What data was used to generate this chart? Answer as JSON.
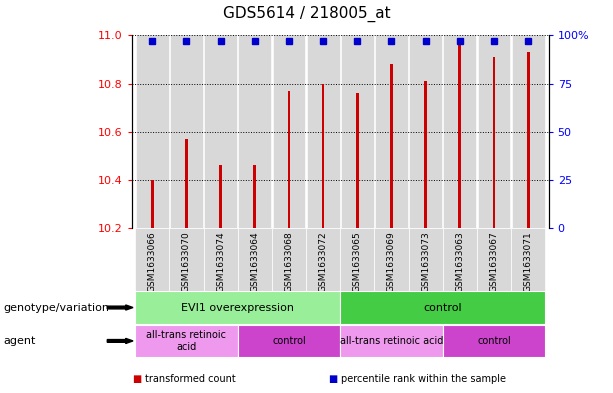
{
  "title": "GDS5614 / 218005_at",
  "samples": [
    "GSM1633066",
    "GSM1633070",
    "GSM1633074",
    "GSM1633064",
    "GSM1633068",
    "GSM1633072",
    "GSM1633065",
    "GSM1633069",
    "GSM1633073",
    "GSM1633063",
    "GSM1633067",
    "GSM1633071"
  ],
  "red_values": [
    10.4,
    10.57,
    10.46,
    10.46,
    10.77,
    10.8,
    10.76,
    10.88,
    10.81,
    10.96,
    10.91,
    10.93
  ],
  "blue_values": [
    97,
    97,
    97,
    97,
    97,
    97,
    97,
    97,
    97,
    97,
    97,
    97
  ],
  "ylim_left": [
    10.2,
    11.0
  ],
  "ylim_right": [
    0,
    100
  ],
  "yticks_left": [
    10.2,
    10.4,
    10.6,
    10.8,
    11.0
  ],
  "yticks_right": [
    0,
    25,
    50,
    75,
    100
  ],
  "ytick_labels_right": [
    "0",
    "25",
    "50",
    "75",
    "100%"
  ],
  "bar_color": "#cc0000",
  "dot_color": "#0000cc",
  "col_bg_color": "#d8d8d8",
  "genotype_row": {
    "label": "genotype/variation",
    "groups": [
      {
        "text": "EVI1 overexpression",
        "span": [
          0,
          5
        ],
        "color": "#99ee99"
      },
      {
        "text": "control",
        "span": [
          6,
          11
        ],
        "color": "#44cc44"
      }
    ]
  },
  "agent_row": {
    "label": "agent",
    "groups": [
      {
        "text": "all-trans retinoic\nacid",
        "span": [
          0,
          2
        ],
        "color": "#ee99ee"
      },
      {
        "text": "control",
        "span": [
          3,
          5
        ],
        "color": "#cc44cc"
      },
      {
        "text": "all-trans retinoic acid",
        "span": [
          6,
          8
        ],
        "color": "#ee99ee"
      },
      {
        "text": "control",
        "span": [
          9,
          11
        ],
        "color": "#cc44cc"
      }
    ]
  },
  "legend_items": [
    {
      "color": "#cc0000",
      "label": "transformed count"
    },
    {
      "color": "#0000cc",
      "label": "percentile rank within the sample"
    }
  ]
}
